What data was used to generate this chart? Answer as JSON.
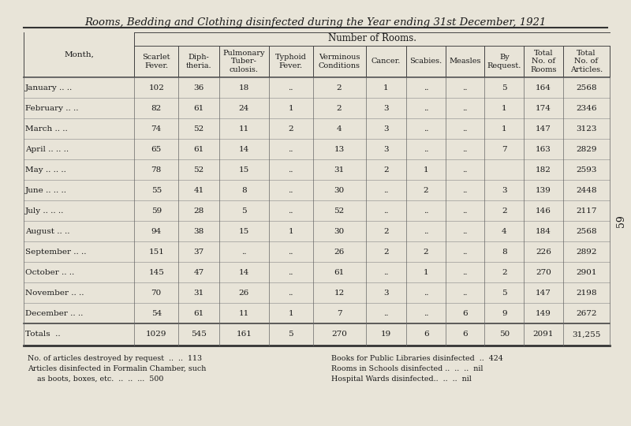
{
  "title": "Rooms, Bedding and Clothing disinfected during the Year ending 31st December, 1921",
  "bg_color": "#e8e4d8",
  "header_group": "Number of Rooms.",
  "col_headers": [
    "Month,",
    "Scarlet\nFever.",
    "Diph-\ntheria.",
    "Pulmonary\nTuber-\nculosis.",
    "Typhoid\nFever.",
    "Verminous\nConditions",
    "Cancer.",
    "Scabies.",
    "Measles",
    "By\nRequest.",
    "Total\nNo. of\nRooms",
    "Total\nNo. of\nArticles."
  ],
  "months": [
    "January .. ..",
    "February .. ..",
    "March .. ..",
    "April .. .. ..",
    "May .. .. ..",
    "June .. .. ..",
    "July .. .. ..",
    "August .. ..",
    "September .. ..",
    "October .. ..",
    "November .. ..",
    "December .. .."
  ],
  "data": [
    [
      102,
      36,
      18,
      "..",
      2,
      1,
      "..",
      "..",
      5,
      164,
      2568
    ],
    [
      82,
      61,
      24,
      1,
      2,
      3,
      "..",
      "..",
      1,
      174,
      2346
    ],
    [
      74,
      52,
      11,
      2,
      4,
      3,
      "..",
      "..",
      1,
      147,
      3123
    ],
    [
      65,
      61,
      14,
      "..",
      13,
      3,
      "..",
      "..",
      7,
      163,
      2829
    ],
    [
      78,
      52,
      15,
      "..",
      31,
      2,
      1,
      "..",
      "",
      182,
      2593
    ],
    [
      55,
      41,
      8,
      "..",
      30,
      "..",
      2,
      "..",
      3,
      139,
      2448
    ],
    [
      59,
      28,
      5,
      "..",
      52,
      "..",
      "..",
      "..",
      2,
      146,
      2117
    ],
    [
      94,
      38,
      15,
      1,
      30,
      2,
      "..",
      "..",
      4,
      184,
      2568
    ],
    [
      151,
      37,
      "..",
      "..",
      26,
      2,
      2,
      "..",
      8,
      226,
      2892
    ],
    [
      145,
      47,
      14,
      "..",
      61,
      "..",
      1,
      "..",
      2,
      270,
      2901
    ],
    [
      70,
      31,
      26,
      "..",
      12,
      3,
      "..",
      "..",
      5,
      147,
      2198
    ],
    [
      54,
      61,
      11,
      1,
      7,
      "..",
      "..",
      6,
      9,
      149,
      2672
    ]
  ],
  "totals": [
    1029,
    545,
    161,
    5,
    270,
    19,
    6,
    6,
    50,
    2091,
    "31,255"
  ],
  "footnotes_left": [
    "No. of articles destroyed by request  ..  ..  113",
    "Articles disinfected in Formalin Chamber, such",
    "    as boots, boxes, etc.  ..  ..  ...  500"
  ],
  "footnotes_right": [
    "Books for Public Libraries disinfected  ..  424",
    "Rooms in Schools disinfected ..  ..  ..  nil",
    "Hospital Wards disinfected..  ..  ..  nil"
  ],
  "page_number": "59"
}
